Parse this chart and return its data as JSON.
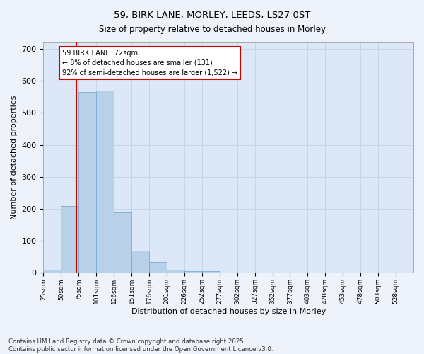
{
  "title_line1": "59, BIRK LANE, MORLEY, LEEDS, LS27 0ST",
  "title_line2": "Size of property relative to detached houses in Morley",
  "xlabel": "Distribution of detached houses by size in Morley",
  "ylabel": "Number of detached properties",
  "footnote": "Contains HM Land Registry data © Crown copyright and database right 2025.\nContains public sector information licensed under the Open Government Licence v3.0.",
  "bin_labels": [
    "25sqm",
    "50sqm",
    "75sqm",
    "101sqm",
    "126sqm",
    "151sqm",
    "176sqm",
    "201sqm",
    "226sqm",
    "252sqm",
    "277sqm",
    "302sqm",
    "327sqm",
    "352sqm",
    "377sqm",
    "403sqm",
    "428sqm",
    "453sqm",
    "478sqm",
    "503sqm",
    "528sqm"
  ],
  "bar_values": [
    10,
    210,
    565,
    570,
    190,
    70,
    35,
    10,
    5,
    5,
    2,
    2,
    2,
    1,
    0,
    0,
    0,
    0,
    1,
    0,
    0
  ],
  "bar_color": "#b8d0e8",
  "bar_edge_color": "#7aaed0",
  "grid_color": "#c8d4e8",
  "background_color": "#dce8f8",
  "fig_background_color": "#eef2fa",
  "property_line_color": "#cc0000",
  "legend_text_line1": "59 BIRK LANE: 72sqm",
  "legend_text_line2": "← 8% of detached houses are smaller (131)",
  "legend_text_line3": "92% of semi-detached houses are larger (1,522) →",
  "legend_box_color": "#cc0000",
  "ylim": [
    0,
    720
  ],
  "yticks": [
    0,
    100,
    200,
    300,
    400,
    500,
    600,
    700
  ],
  "num_bins": 21,
  "property_bin_index": 1,
  "property_size_sqm": 72
}
